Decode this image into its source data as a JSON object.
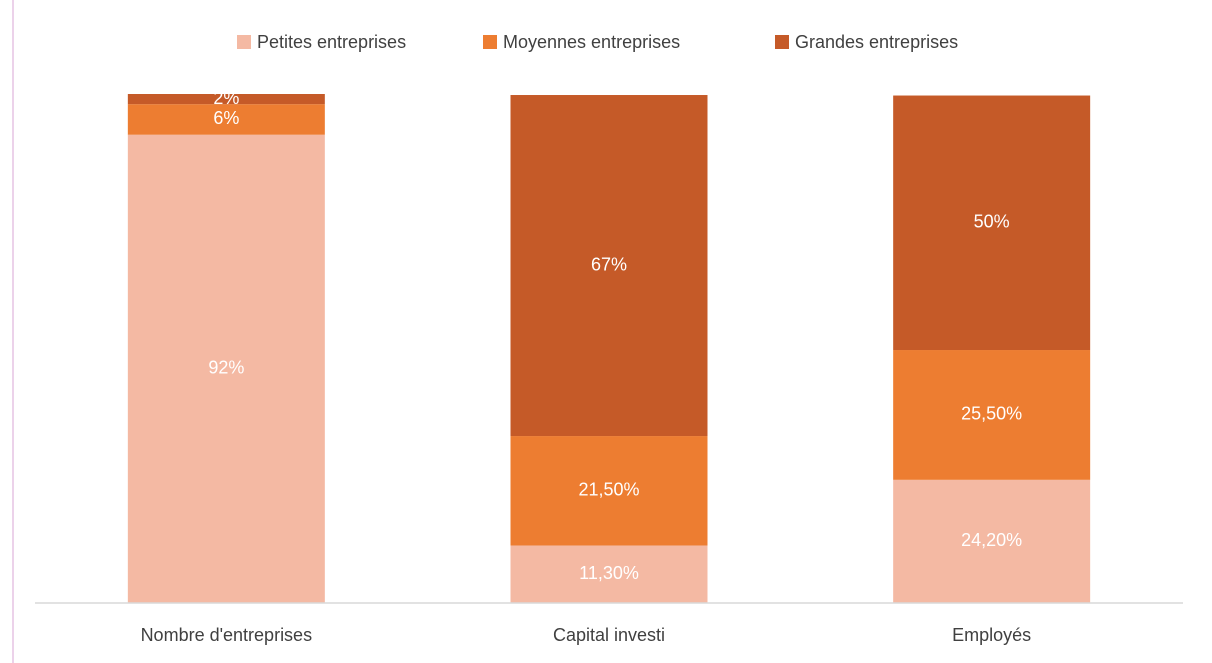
{
  "chart_data": {
    "type": "bar",
    "stacked": true,
    "categories": [
      "Nombre d'entreprises",
      "Capital investi",
      "Employés"
    ],
    "series": [
      {
        "name": "Petites entreprises",
        "color": "#f4b9a3",
        "values": [
          92,
          11.3,
          24.2
        ],
        "value_labels": [
          "92%",
          "11,30%",
          "24,20%"
        ]
      },
      {
        "name": "Moyennes entreprises",
        "color": "#ed7d31",
        "values": [
          6,
          21.5,
          25.5
        ],
        "value_labels": [
          "6%",
          "21,50%",
          "25,50%"
        ]
      },
      {
        "name": "Grandes entreprises",
        "color": "#c55a28",
        "values": [
          2,
          67,
          50
        ],
        "value_labels": [
          "2%",
          "67%",
          "50%"
        ]
      }
    ],
    "ylim": [
      0,
      100
    ],
    "legend": "top"
  }
}
